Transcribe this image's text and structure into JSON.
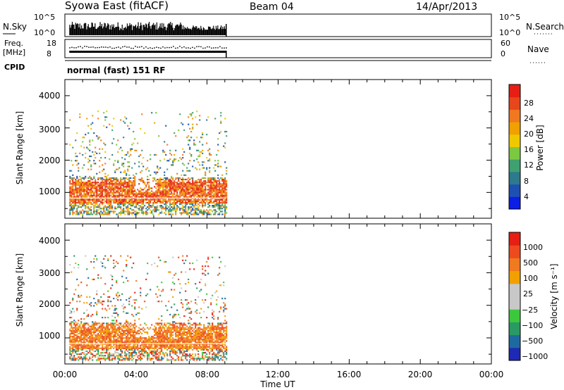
{
  "header": {
    "title": "Syowa East (fitACF)",
    "beam": "Beam 04",
    "date": "14/Apr/2013"
  },
  "nsky_panel": {
    "left_label": "N.Sky",
    "right_label": "N.Search",
    "left_ticks": [
      "10^5",
      "10^0"
    ],
    "right_ticks": [
      "10^5",
      "10^0"
    ]
  },
  "freq_panel": {
    "left_label_1": "Freq.",
    "left_label_2": "[MHz]",
    "right_label": "Nave",
    "left_ticks": [
      "18",
      "8"
    ],
    "right_ticks": [
      "60",
      "0"
    ]
  },
  "cpid": {
    "label": "CPID",
    "value": "normal (fast) 151 RF"
  },
  "time_axis": {
    "label": "Time UT",
    "ticks": [
      "00:00",
      "04:00",
      "08:00",
      "12:00",
      "16:00",
      "20:00",
      "00:00"
    ]
  },
  "colors": {
    "power_scale": [
      "#0a1ee6",
      "#1e50b4",
      "#2c7a8c",
      "#3fa070",
      "#7cc840",
      "#f0c800",
      "#f0a000",
      "#f07820",
      "#e8461c",
      "#e61e14"
    ],
    "velocity_scale": [
      "#e61e14",
      "#ee4a1e",
      "#f07a1e",
      "#f2a000",
      "#c8c8c8",
      "#c8c8c8",
      "#3cc83c",
      "#2a9a64",
      "#1e6aa0",
      "#1e2ab4"
    ]
  },
  "chart_data": [
    {
      "type": "heatmap",
      "title": "",
      "ylabel": "Slant Range [km]",
      "xlabel": "",
      "x_range": [
        "00:00",
        "24:00"
      ],
      "data_extent_x": [
        "00:15",
        "09:05"
      ],
      "ylim": [
        200,
        4500
      ],
      "y_ticks": [
        "1000",
        "2000",
        "3000",
        "4000"
      ],
      "colorbar": {
        "label": "Power [dB]",
        "range": [
          0,
          32
        ],
        "ticks": [
          "4",
          "8",
          "12",
          "16",
          "20",
          "24",
          "28"
        ]
      }
    },
    {
      "type": "heatmap",
      "title": "",
      "ylabel": "Slant Range [km]",
      "xlabel": "Time UT",
      "x_range": [
        "00:00",
        "24:00"
      ],
      "data_extent_x": [
        "00:15",
        "09:05"
      ],
      "ylim": [
        200,
        4500
      ],
      "y_ticks": [
        "1000",
        "2000",
        "3000",
        "4000"
      ],
      "colorbar": {
        "label": "Velocity [m s⁻¹]",
        "ticks": [
          "1000",
          "500",
          "100",
          "25",
          "−25",
          "−100",
          "−500",
          "−1000"
        ]
      }
    }
  ]
}
